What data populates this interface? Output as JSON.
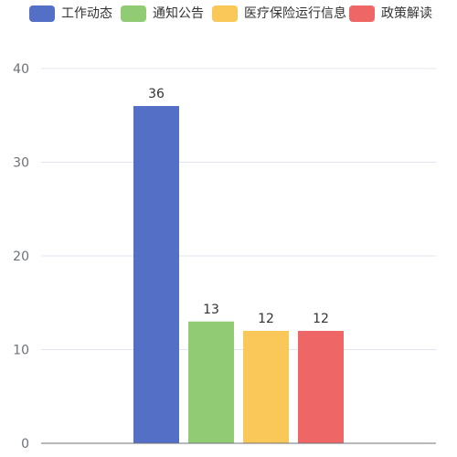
{
  "chart_data": {
    "type": "bar",
    "title": "",
    "xlabel": "",
    "ylabel": "",
    "ylim": [
      0,
      40
    ],
    "yticks": [
      0,
      10,
      20,
      30,
      40
    ],
    "grid": true,
    "legend_position": "top",
    "show_value_labels": true,
    "series": [
      {
        "name": "工作动态",
        "value": 36,
        "color": "#5470c6"
      },
      {
        "name": "通知公告",
        "value": 13,
        "color": "#91cc75"
      },
      {
        "name": "医疗保险运行信息",
        "value": 12,
        "color": "#fac858"
      },
      {
        "name": "政策解读",
        "value": 12,
        "color": "#ee6666"
      }
    ]
  }
}
